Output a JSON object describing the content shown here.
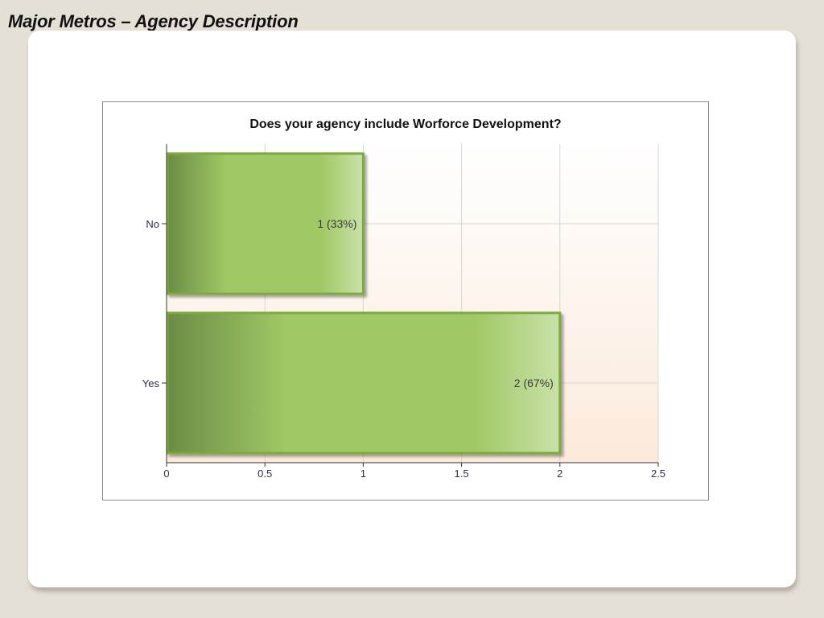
{
  "slide": {
    "title": "Major Metros – Agency Description"
  },
  "colors": {
    "background": "#e5e0d6",
    "card": "#ffffff",
    "bar_dark": "#6a8c45",
    "bar_mid": "#a0c865",
    "bar_light": "#c9e1a8",
    "bar_border": "#7bab3e",
    "plot_bg_top": "#ffffff",
    "plot_bg_bottom": "#fbeadb",
    "grid": "#d6d6d6"
  },
  "chart_data": {
    "type": "bar",
    "orientation": "horizontal",
    "title": "Does your agency include Worforce Development?",
    "categories": [
      "No",
      "Yes"
    ],
    "values": [
      1,
      2
    ],
    "data_labels": [
      "1 (33%)",
      "2 (67%)"
    ],
    "xlim": [
      0,
      2.5
    ],
    "x_ticks": [
      "0",
      "0.5",
      "1",
      "1.5",
      "2",
      "2.5"
    ],
    "x_tick_values": [
      0,
      0.5,
      1,
      1.5,
      2,
      2.5
    ],
    "grid": true,
    "legend": "none"
  }
}
